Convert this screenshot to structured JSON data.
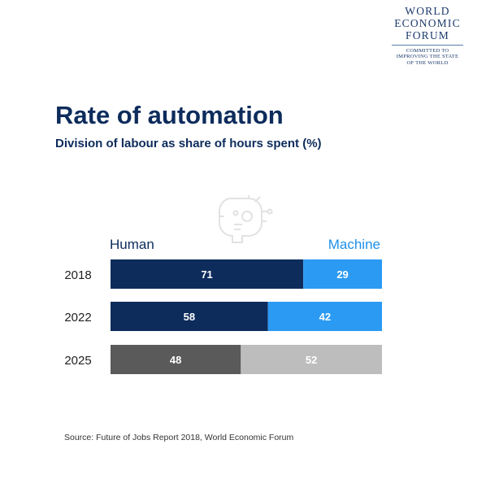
{
  "logo": {
    "lines": [
      "WORLD",
      "ECONOMIC",
      "FORUM"
    ],
    "tagline": [
      "COMMITTED TO",
      "IMPROVING THE STATE",
      "OF THE WORLD"
    ]
  },
  "chart_data": {
    "type": "bar",
    "orientation": "horizontal-stacked",
    "title": "Rate of automation",
    "subtitle": "Division of labour as share of hours spent (%)",
    "categories": [
      "2018",
      "2022",
      "2025"
    ],
    "series": [
      {
        "name": "Human",
        "values": [
          71,
          58,
          48
        ]
      },
      {
        "name": "Machine",
        "values": [
          29,
          42,
          52
        ]
      }
    ],
    "xlim": [
      0,
      100
    ],
    "legend_placement": "top",
    "colors": {
      "human": "#0d2c5c",
      "machine": "#2b9af3",
      "human_projected": "#5a5a5a",
      "machine_projected": "#bdbdbd",
      "label_machine": "#1e90e8"
    },
    "grid": false
  },
  "source": "Source: Future of Jobs Report 2018, World Economic Forum"
}
